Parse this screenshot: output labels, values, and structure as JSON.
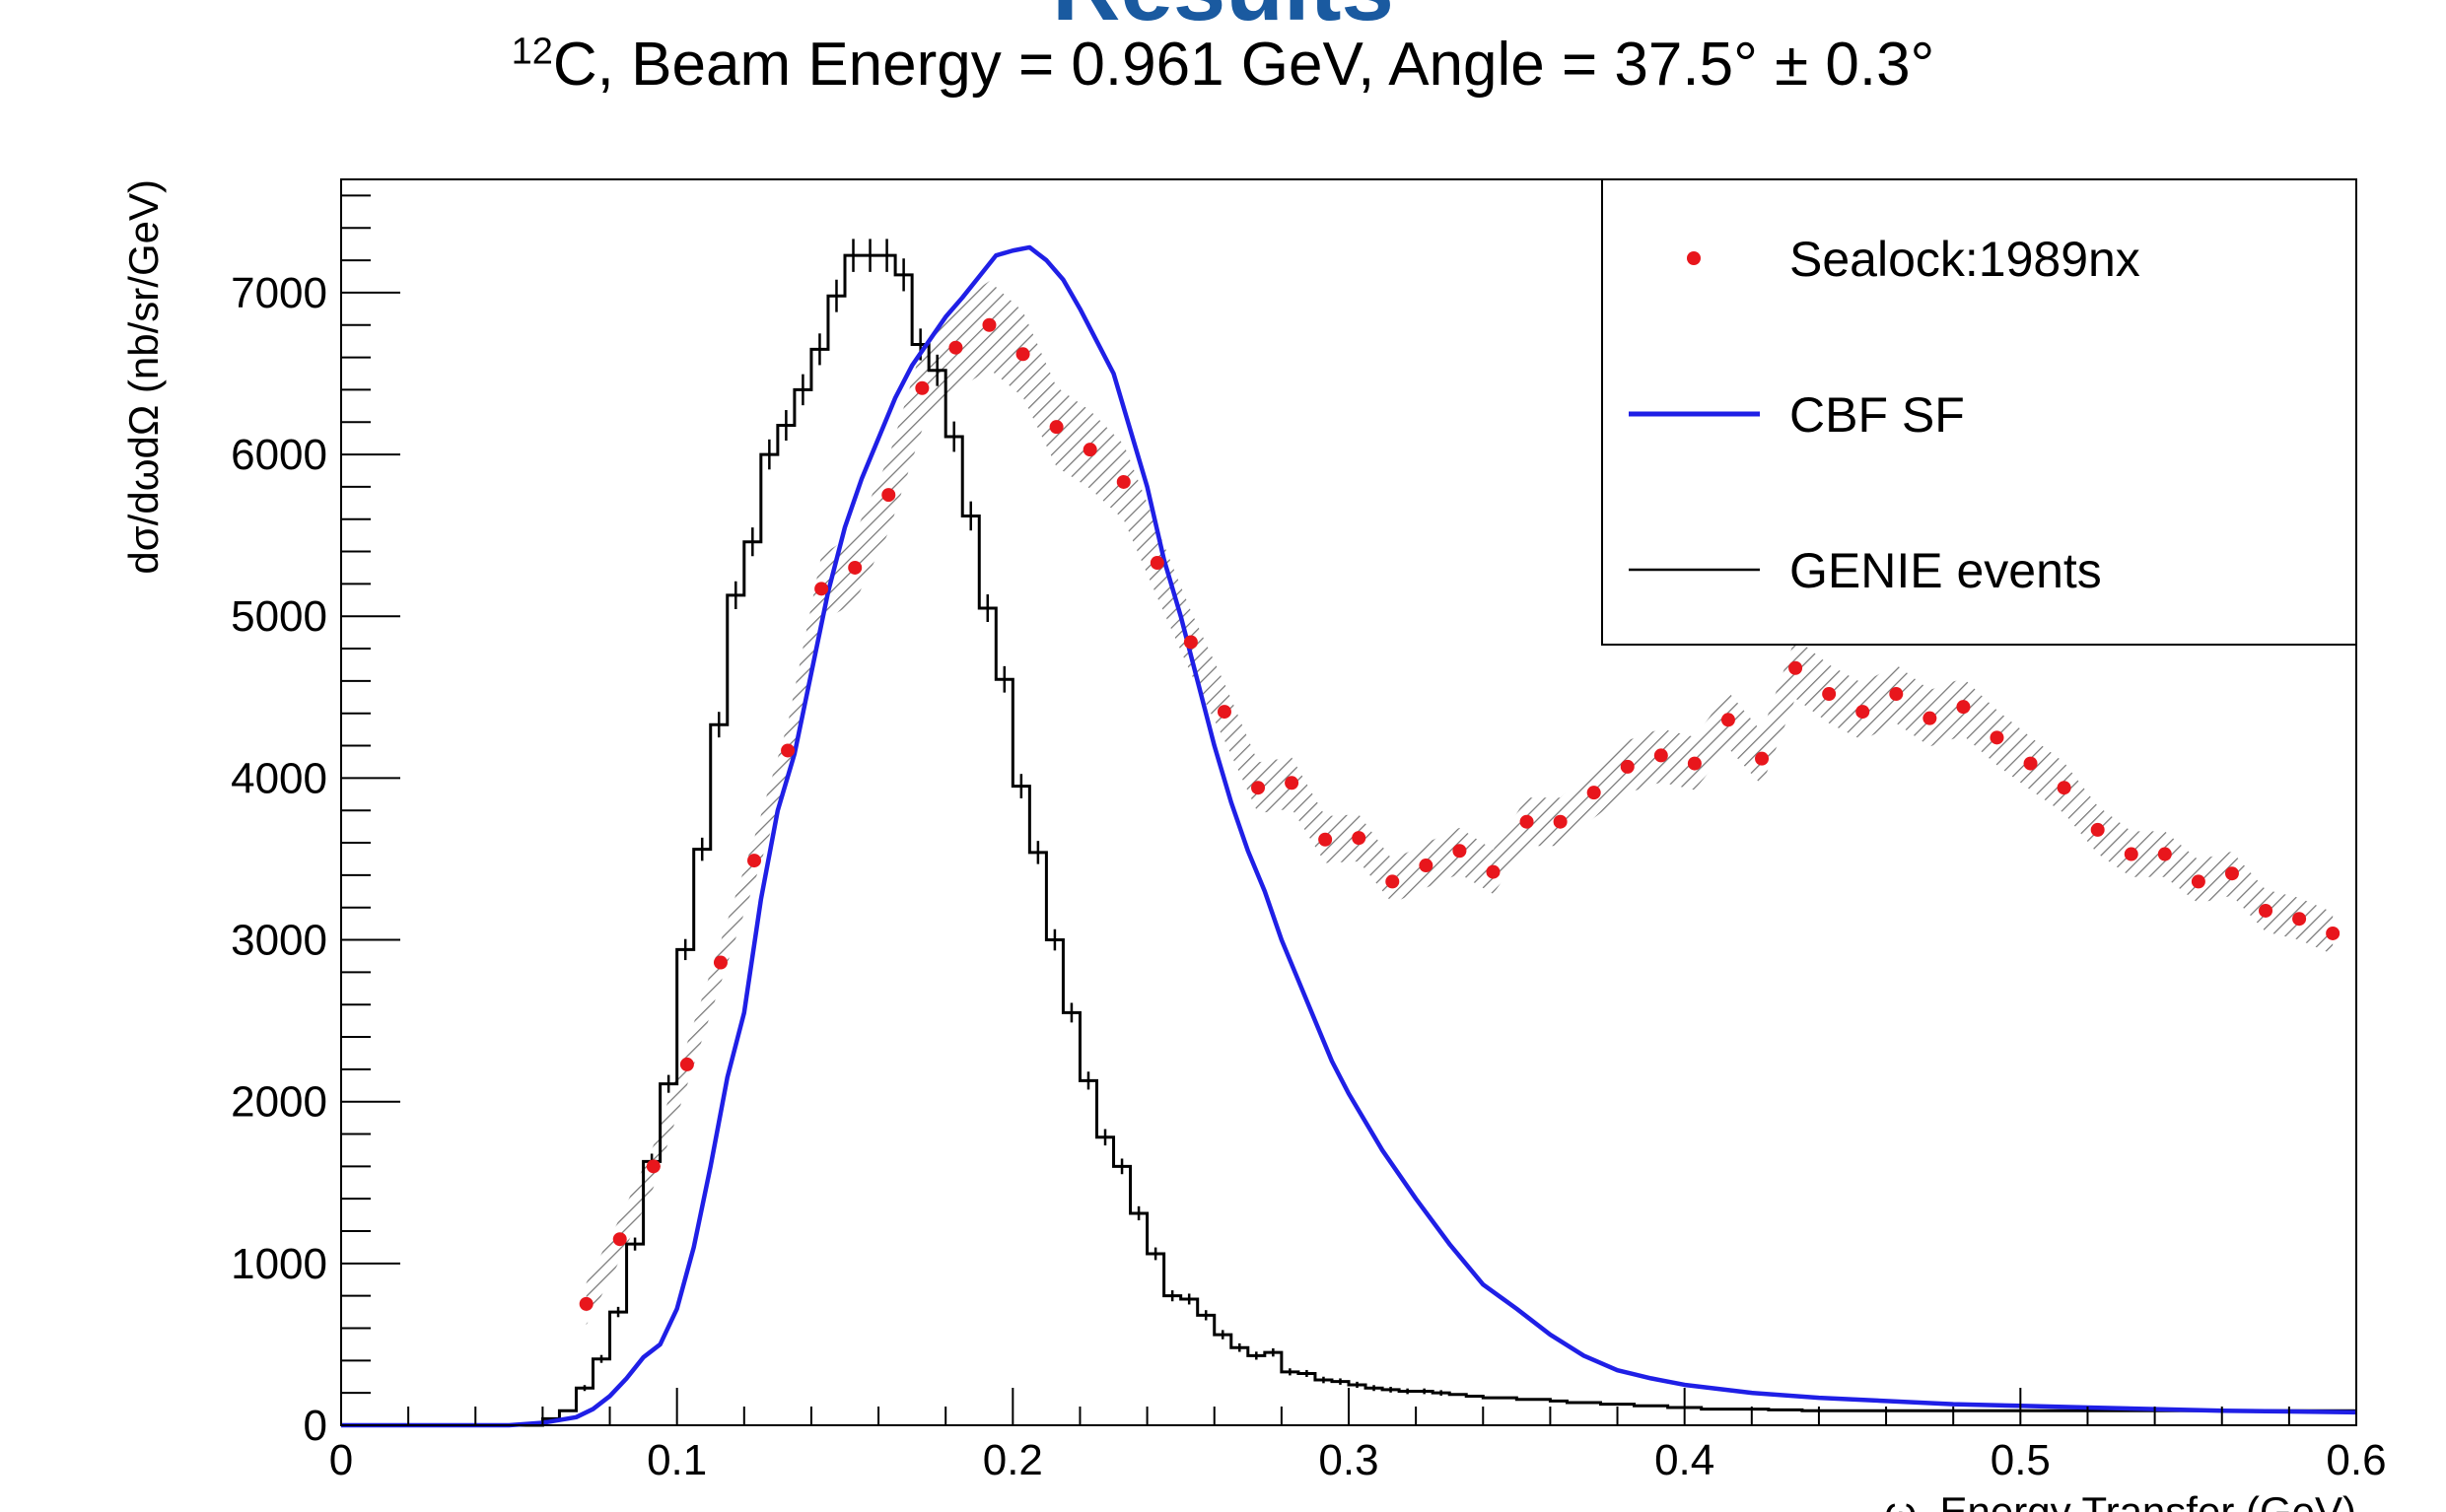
{
  "header": {
    "title": "Results",
    "subtitle_nucleus_mass": "12",
    "subtitle_rest": "C, Beam Energy = 0.961 GeV, Angle = 37.5° ± 0.3°"
  },
  "chart_data": {
    "type": "line",
    "xlabel": "ω, Energy Transfer (GeV)",
    "ylabel": "dσ/dωdΩ (nb/sr/GeV)",
    "xlim": [
      0,
      0.6
    ],
    "ylim": [
      0,
      7700
    ],
    "xticks": [
      "0",
      "0.1",
      "0.2",
      "0.3",
      "0.4",
      "0.5",
      "0.6"
    ],
    "yticks": [
      "0",
      "1000",
      "2000",
      "3000",
      "4000",
      "5000",
      "6000",
      "7000"
    ],
    "legend": {
      "position": "top-right",
      "entries": [
        "Sealock:1989nx",
        "CBF SF",
        "GENIE events"
      ]
    },
    "colors": {
      "data": "#e8161c",
      "model": "#1f1fe6",
      "genie": "#000000",
      "band": "#666666"
    },
    "series": [
      {
        "name": "Sealock:1989nx",
        "style": "points-with-hatched-band",
        "x": [
          0.073,
          0.083,
          0.093,
          0.103,
          0.113,
          0.123,
          0.133,
          0.143,
          0.153,
          0.163,
          0.173,
          0.183,
          0.193,
          0.203,
          0.213,
          0.223,
          0.233,
          0.243,
          0.253,
          0.263,
          0.273,
          0.283,
          0.293,
          0.303,
          0.313,
          0.323,
          0.333,
          0.343,
          0.353,
          0.363,
          0.373,
          0.383,
          0.393,
          0.403,
          0.413,
          0.423,
          0.433,
          0.443,
          0.453,
          0.463,
          0.473,
          0.483,
          0.493,
          0.503,
          0.513,
          0.523,
          0.533,
          0.543,
          0.553,
          0.563,
          0.573,
          0.583,
          0.593
        ],
        "y": [
          750,
          1150,
          1600,
          2230,
          2860,
          3490,
          4170,
          5170,
          5300,
          5750,
          6410,
          6660,
          6800,
          6620,
          6170,
          6030,
          5830,
          5330,
          4840,
          4410,
          3940,
          3970,
          3620,
          3630,
          3360,
          3460,
          3550,
          3420,
          3730,
          3730,
          3910,
          4070,
          4140,
          4090,
          4360,
          4120,
          4680,
          4520,
          4410,
          4520,
          4370,
          4440,
          4250,
          4090,
          3940,
          3680,
          3530,
          3530,
          3360,
          3410,
          3180,
          3130,
          3040
        ]
      },
      {
        "name": "CBF SF",
        "style": "line",
        "x": [
          0,
          0.05,
          0.06,
          0.07,
          0.075,
          0.08,
          0.085,
          0.09,
          0.095,
          0.1,
          0.105,
          0.11,
          0.115,
          0.12,
          0.125,
          0.13,
          0.135,
          0.14,
          0.145,
          0.15,
          0.155,
          0.16,
          0.165,
          0.17,
          0.175,
          0.18,
          0.185,
          0.19,
          0.195,
          0.2,
          0.205,
          0.21,
          0.215,
          0.22,
          0.225,
          0.23,
          0.235,
          0.24,
          0.245,
          0.25,
          0.255,
          0.26,
          0.265,
          0.27,
          0.275,
          0.28,
          0.285,
          0.29,
          0.295,
          0.3,
          0.31,
          0.32,
          0.33,
          0.34,
          0.35,
          0.36,
          0.37,
          0.38,
          0.39,
          0.4,
          0.42,
          0.44,
          0.46,
          0.48,
          0.5,
          0.52,
          0.54,
          0.56,
          0.58,
          0.6
        ],
        "y": [
          0,
          0,
          15,
          50,
          100,
          180,
          290,
          420,
          500,
          720,
          1100,
          1600,
          2150,
          2550,
          3250,
          3800,
          4150,
          4650,
          5150,
          5550,
          5850,
          6100,
          6350,
          6550,
          6700,
          6850,
          6970,
          7100,
          7230,
          7260,
          7280,
          7200,
          7080,
          6900,
          6700,
          6500,
          6150,
          5800,
          5350,
          5000,
          4600,
          4200,
          3850,
          3550,
          3300,
          3000,
          2750,
          2500,
          2250,
          2050,
          1700,
          1400,
          1120,
          870,
          720,
          560,
          430,
          340,
          290,
          250,
          200,
          170,
          150,
          130,
          120,
          110,
          100,
          90,
          85,
          80
        ]
      },
      {
        "name": "GENIE events",
        "style": "step-histogram-with-errors",
        "bin_width": 0.005,
        "x_start": 0.06,
        "values": [
          40,
          90,
          230,
          410,
          700,
          1120,
          1630,
          2110,
          2940,
          3560,
          4330,
          5130,
          5460,
          6000,
          6180,
          6400,
          6650,
          6980,
          7230,
          7230,
          7230,
          7110,
          6680,
          6520,
          6110,
          5620,
          5050,
          4610,
          3950,
          3540,
          3000,
          2550,
          2130,
          1780,
          1600,
          1310,
          1060,
          800,
          780,
          680,
          560,
          480,
          430,
          450,
          330,
          320,
          280,
          270,
          250,
          230,
          220,
          210,
          210,
          200,
          190,
          180,
          170,
          170,
          160,
          160,
          150,
          140,
          140,
          130,
          130,
          120,
          120,
          110,
          110,
          100,
          100,
          100,
          100,
          95,
          95,
          90,
          90,
          90
        ]
      }
    ]
  }
}
